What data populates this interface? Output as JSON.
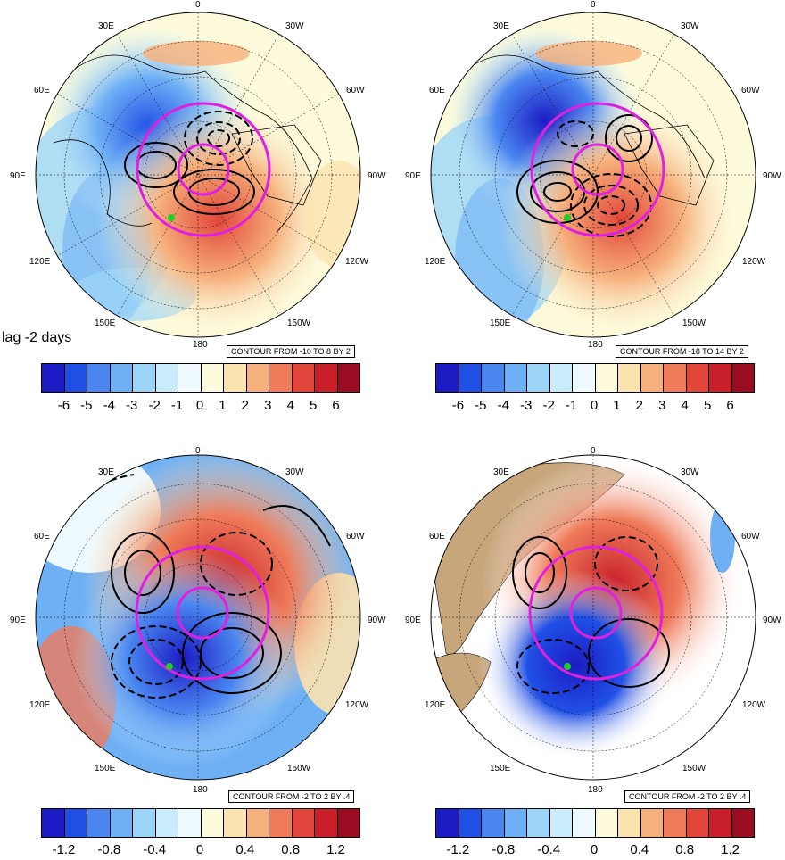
{
  "lag_label": "lag -2 days",
  "panels": [
    {
      "longitude_labels": {
        "top": "0",
        "upper_left": "30E",
        "upper_right": "30W",
        "mid_left_upper": "60E",
        "mid_right_upper": "60W",
        "left": "90E",
        "right": "90W",
        "mid_left_lower": "120E",
        "mid_right_lower": "120W",
        "lower_left": "150E",
        "lower_right": "150W",
        "bottom": "180"
      },
      "contour_text": "CONTOUR FROM -10 TO 8 BY 2",
      "colorbar_ticks": [
        "-6",
        "-5",
        "-4",
        "-3",
        "-2",
        "-1",
        "0",
        "1",
        "2",
        "3",
        "4",
        "5",
        "6"
      ],
      "land_fill": false
    },
    {
      "longitude_labels": {
        "top": "0",
        "upper_left": "30E",
        "upper_right": "30W",
        "mid_left_upper": "60E",
        "mid_right_upper": "60W",
        "left": "90E",
        "right": "90W",
        "mid_left_lower": "120E",
        "mid_right_lower": "120W",
        "lower_left": "150E",
        "lower_right": "150W",
        "bottom": "180"
      },
      "contour_text": "CONTOUR FROM -18 TO 14 BY 2",
      "colorbar_ticks": [
        "-6",
        "-5",
        "-4",
        "-3",
        "-2",
        "-1",
        "0",
        "1",
        "2",
        "3",
        "4",
        "5",
        "6"
      ],
      "land_fill": false
    },
    {
      "longitude_labels": {
        "top": "0",
        "upper_left": "30E",
        "upper_right": "30W",
        "mid_left_upper": "60E",
        "mid_right_upper": "60W",
        "left": "90E",
        "right": "90W",
        "mid_left_lower": "120E",
        "mid_right_lower": "120W",
        "lower_left": "150E",
        "lower_right": "150W",
        "bottom": "180"
      },
      "contour_text": "CONTOUR FROM -2 TO 2 BY .4",
      "colorbar_ticks": [
        "-1.2",
        "-0.8",
        "-0.4",
        "0",
        "0.4",
        "0.8",
        "1.2"
      ],
      "land_fill": false
    },
    {
      "longitude_labels": {
        "top": "0",
        "upper_left": "30E",
        "upper_right": "30W",
        "mid_left_upper": "60E",
        "mid_right_upper": "60W",
        "left": "90E",
        "right": "90W",
        "mid_left_lower": "120E",
        "mid_right_lower": "120W",
        "lower_left": "150E",
        "lower_right": "150W",
        "bottom": "180"
      },
      "contour_text": "CONTOUR FROM -2 TO 2 BY .4",
      "colorbar_ticks": [
        "-1.2",
        "-0.8",
        "-0.4",
        "0",
        "0.4",
        "0.8",
        "1.2"
      ],
      "land_fill": true
    }
  ],
  "colorbar_colors": [
    "#1c1cc4",
    "#2050e6",
    "#4a86f0",
    "#6fb0f5",
    "#9bd6f8",
    "#c9ecfb",
    "#effaff",
    "#fdfbdc",
    "#fbe3b0",
    "#f6b07c",
    "#ef7b5a",
    "#e2463a",
    "#c81f2a",
    "#9a0d20"
  ],
  "colors": {
    "contour": "#000000",
    "circle": "#e020e0",
    "marker": "#22cc22",
    "land": "#c8a67c",
    "coast": "#000000"
  }
}
